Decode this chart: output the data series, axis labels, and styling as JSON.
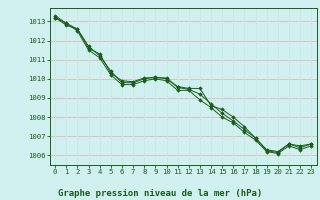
{
  "title": "Graphe pression niveau de la mer (hPa)",
  "background_color": "#cff0ee",
  "grid_color_h": "#e0b8b8",
  "grid_color_v": "#c8e8e8",
  "line_color": "#1a5c1a",
  "xlim": [
    -0.5,
    23.5
  ],
  "ylim": [
    1005.5,
    1013.7
  ],
  "yticks": [
    1006,
    1007,
    1008,
    1009,
    1010,
    1011,
    1012,
    1013
  ],
  "xticks": [
    0,
    1,
    2,
    3,
    4,
    5,
    6,
    7,
    8,
    9,
    10,
    11,
    12,
    13,
    14,
    15,
    16,
    17,
    18,
    19,
    20,
    21,
    22,
    23
  ],
  "series": [
    [
      1013.2,
      1012.8,
      1012.6,
      1011.7,
      1011.2,
      1010.4,
      1009.8,
      1009.8,
      1010.0,
      1010.1,
      1010.0,
      1009.6,
      1009.5,
      1009.5,
      1008.6,
      1008.4,
      1008.0,
      1007.5,
      1006.9,
      1006.3,
      1006.2,
      1006.6,
      1006.5,
      1006.6
    ],
    [
      1013.2,
      1012.9,
      1012.5,
      1011.5,
      1011.1,
      1010.2,
      1009.7,
      1009.7,
      1009.9,
      1010.0,
      1009.9,
      1009.4,
      1009.4,
      1008.9,
      1008.5,
      1008.0,
      1007.7,
      1007.2,
      1006.8,
      1006.2,
      1006.1,
      1006.5,
      1006.3,
      1006.5
    ],
    [
      1013.3,
      1012.9,
      1012.6,
      1011.6,
      1011.3,
      1010.3,
      1009.9,
      1009.85,
      1010.05,
      1010.05,
      1010.05,
      1009.55,
      1009.45,
      1009.2,
      1008.7,
      1008.2,
      1007.8,
      1007.35,
      1006.9,
      1006.25,
      1006.15,
      1006.6,
      1006.4,
      1006.6
    ]
  ],
  "title_fontsize": 6.5,
  "tick_fontsize": 5.2
}
